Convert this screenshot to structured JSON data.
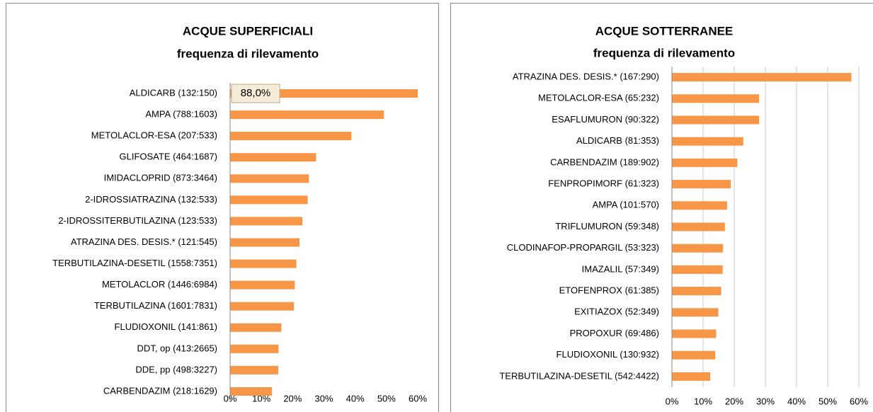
{
  "chart_data": [
    {
      "type": "bar",
      "orientation": "horizontal",
      "title": "ACQUE SUPERFICIALI",
      "subtitle": "frequenza di rilevamento",
      "categories": [
        "ALDICARB (132:150)",
        "AMPA (788:1603)",
        "METOLACLOR-ESA (207:533)",
        "GLIFOSATE (464:1687)",
        "IMIDACLOPRID (873:3464)",
        "2-IDROSSIATRAZINA (132:533)",
        "2-IDROSSITERBUTILAZINA (123:533)",
        "ATRAZINA DES. DESIS.* (121:545)",
        "TERBUTILAZINA-DESETIL (1558:7351)",
        "METOLACLOR (1446:6984)",
        "TERBUTILAZINA (1601:7831)",
        "FLUDIOXONIL (141:861)",
        "DDT, op  (413:2665)",
        "DDE, pp  (498:3227)",
        "CARBENDAZIM (218:1629)"
      ],
      "values": [
        88.0,
        49.2,
        38.8,
        27.5,
        25.2,
        24.8,
        23.1,
        22.2,
        21.2,
        20.7,
        20.4,
        16.4,
        15.5,
        15.4,
        13.4
      ],
      "value_labels": [
        "88,0%",
        null,
        null,
        null,
        null,
        null,
        null,
        null,
        null,
        null,
        null,
        null,
        null,
        null,
        null
      ],
      "color": "#f79646",
      "xlim": [
        0,
        60
      ],
      "xticks": [
        {
          "value": 0,
          "label": "0%"
        },
        {
          "value": 10,
          "label": "10%"
        },
        {
          "value": 20,
          "label": "20%"
        },
        {
          "value": 30,
          "label": "30%"
        },
        {
          "value": 40,
          "label": "40%"
        },
        {
          "value": 50,
          "label": "50%"
        },
        {
          "value": 60,
          "label": "60%"
        }
      ],
      "grid": false
    },
    {
      "type": "bar",
      "orientation": "horizontal",
      "title": "ACQUE SOTTERRANEE",
      "subtitle": "frequenza di rilevamento",
      "categories": [
        "ATRAZINA DES. DESIS.* (167:290)",
        "METOLACLOR-ESA (65:232)",
        "ESAFLUMURON (90:322)",
        "ALDICARB (81:353)",
        "CARBENDAZIM (189:902)",
        "FENPROPIMORF (61:323)",
        "AMPA (101:570)",
        "TRIFLUMURON (59:348)",
        "CLODINAFOP-PROPARGIL (53:323)",
        "IMAZALIL (57:349)",
        "ETOFENPROX (61:385)",
        "EXITIAZOX (52:349)",
        "PROPOXUR (69:486)",
        "FLUDIOXONIL (130:932)",
        "TERBUTILAZINA-DESETIL (542:4422)"
      ],
      "values": [
        57.6,
        28.0,
        28.0,
        22.9,
        21.0,
        18.9,
        17.7,
        17.0,
        16.4,
        16.3,
        15.8,
        14.9,
        14.2,
        13.9,
        12.3
      ],
      "color": "#f79646",
      "xlim": [
        0,
        60
      ],
      "xticks": [
        {
          "value": 0,
          "label": "0%"
        },
        {
          "value": 10,
          "label": "10%"
        },
        {
          "value": 20,
          "label": "20%"
        },
        {
          "value": 30,
          "label": "30%"
        },
        {
          "value": 40,
          "label": "40%"
        },
        {
          "value": 50,
          "label": "50%"
        },
        {
          "value": 60,
          "label": "60%"
        }
      ],
      "grid": true
    }
  ]
}
